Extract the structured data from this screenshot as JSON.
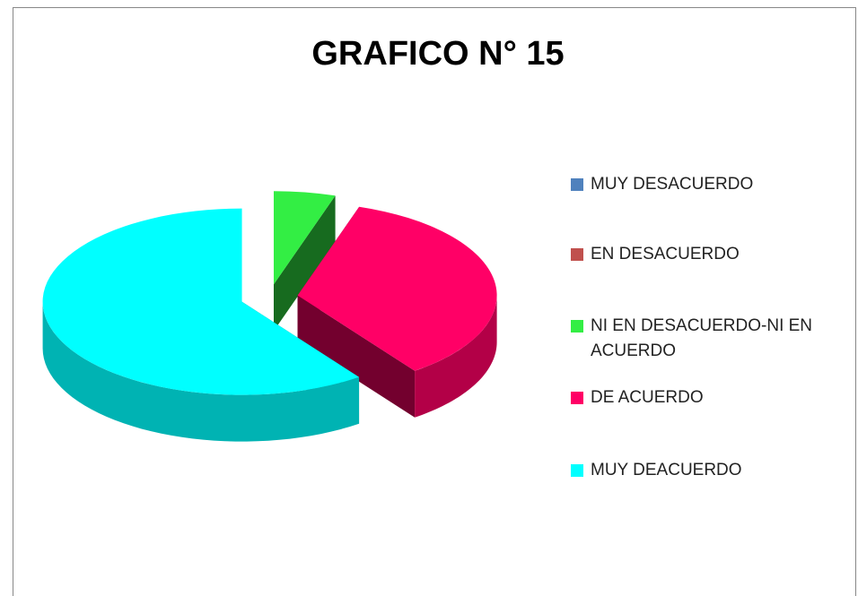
{
  "chart_data": {
    "type": "pie",
    "title": "GRAFICO N° 15",
    "categories": [
      "MUY DESACUERDO",
      "EN DESACUERDO",
      "NI EN DESACUERDO-NI EN ACUERDO",
      "DE ACUERDO",
      "MUY DEACUERDO"
    ],
    "values": [
      0,
      0,
      5,
      35,
      60
    ],
    "colors": [
      "#4f81bd",
      "#c0504d",
      "#33ee44",
      "#ff0066",
      "#00ffff"
    ],
    "legend": "right"
  }
}
